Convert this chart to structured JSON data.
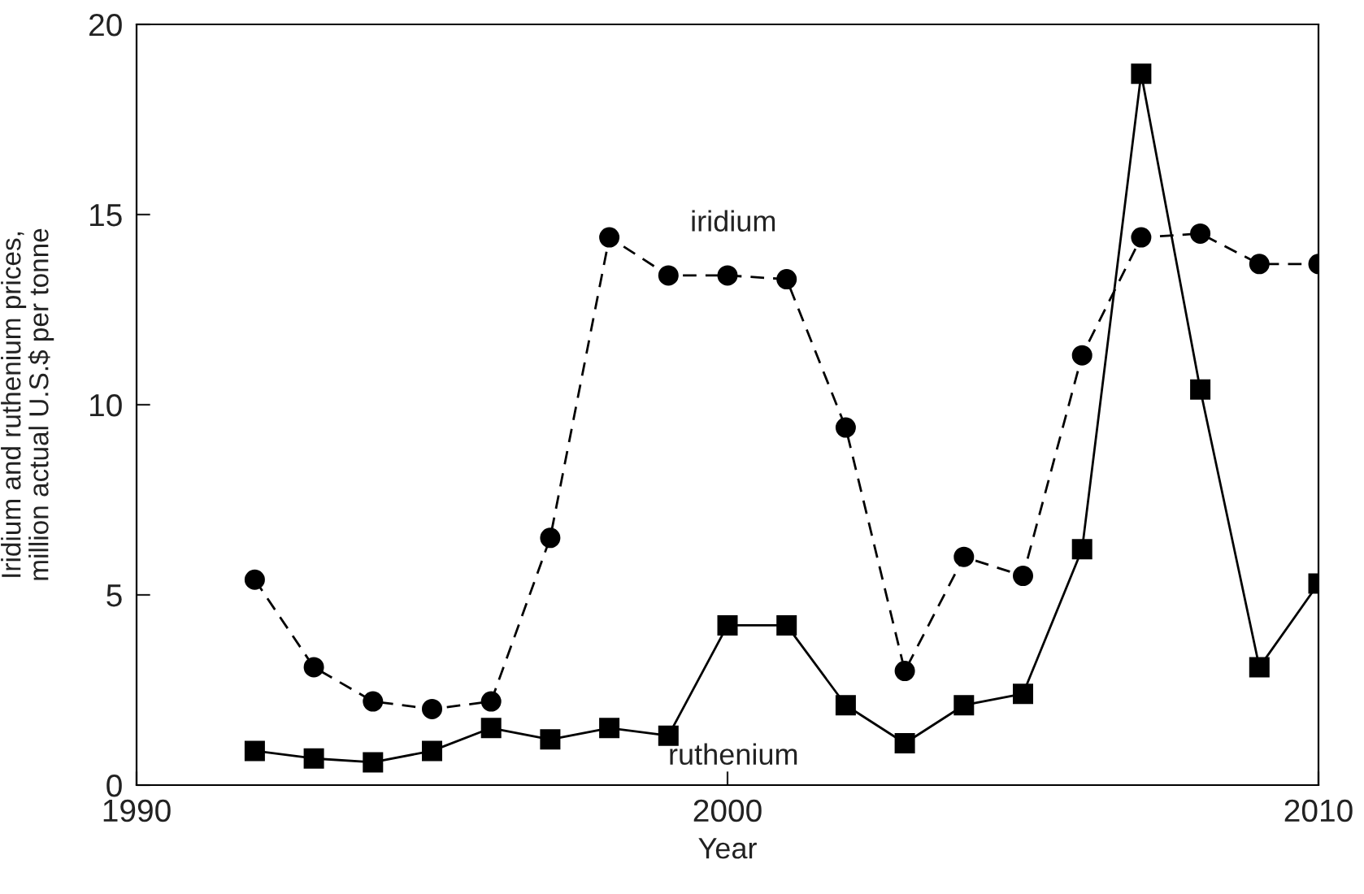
{
  "chart_data": {
    "type": "line",
    "xlabel": "Year",
    "ylabel": "Iridium and ruthenium prices,\nmillion actual U.S.$ per tonne",
    "xlim": [
      1990,
      2010
    ],
    "xticks": [
      1990,
      2000,
      2010
    ],
    "ylim": [
      0,
      20
    ],
    "yticks": [
      0,
      5,
      10,
      15,
      20
    ],
    "grid": false,
    "legend": false,
    "x": [
      1992,
      1993,
      1994,
      1995,
      1996,
      1997,
      1998,
      1999,
      2000,
      2001,
      2002,
      2003,
      2004,
      2005,
      2006,
      2007,
      2008,
      2009,
      2010
    ],
    "series": [
      {
        "name": "iridium",
        "color": "#000000",
        "marker": "circle",
        "line_style": "dashed",
        "values": [
          5.4,
          3.1,
          2.2,
          2.0,
          2.2,
          6.5,
          14.4,
          13.4,
          13.4,
          13.3,
          9.4,
          3.0,
          6.0,
          5.5,
          11.3,
          14.4,
          14.5,
          13.7,
          13.7
        ]
      },
      {
        "name": "ruthenium",
        "color": "#000000",
        "marker": "square",
        "line_style": "solid",
        "values": [
          0.9,
          0.7,
          0.6,
          0.9,
          1.5,
          1.2,
          1.5,
          1.3,
          4.2,
          4.2,
          2.1,
          1.1,
          2.1,
          2.4,
          6.2,
          18.7,
          10.4,
          3.1,
          5.3
        ]
      }
    ]
  }
}
